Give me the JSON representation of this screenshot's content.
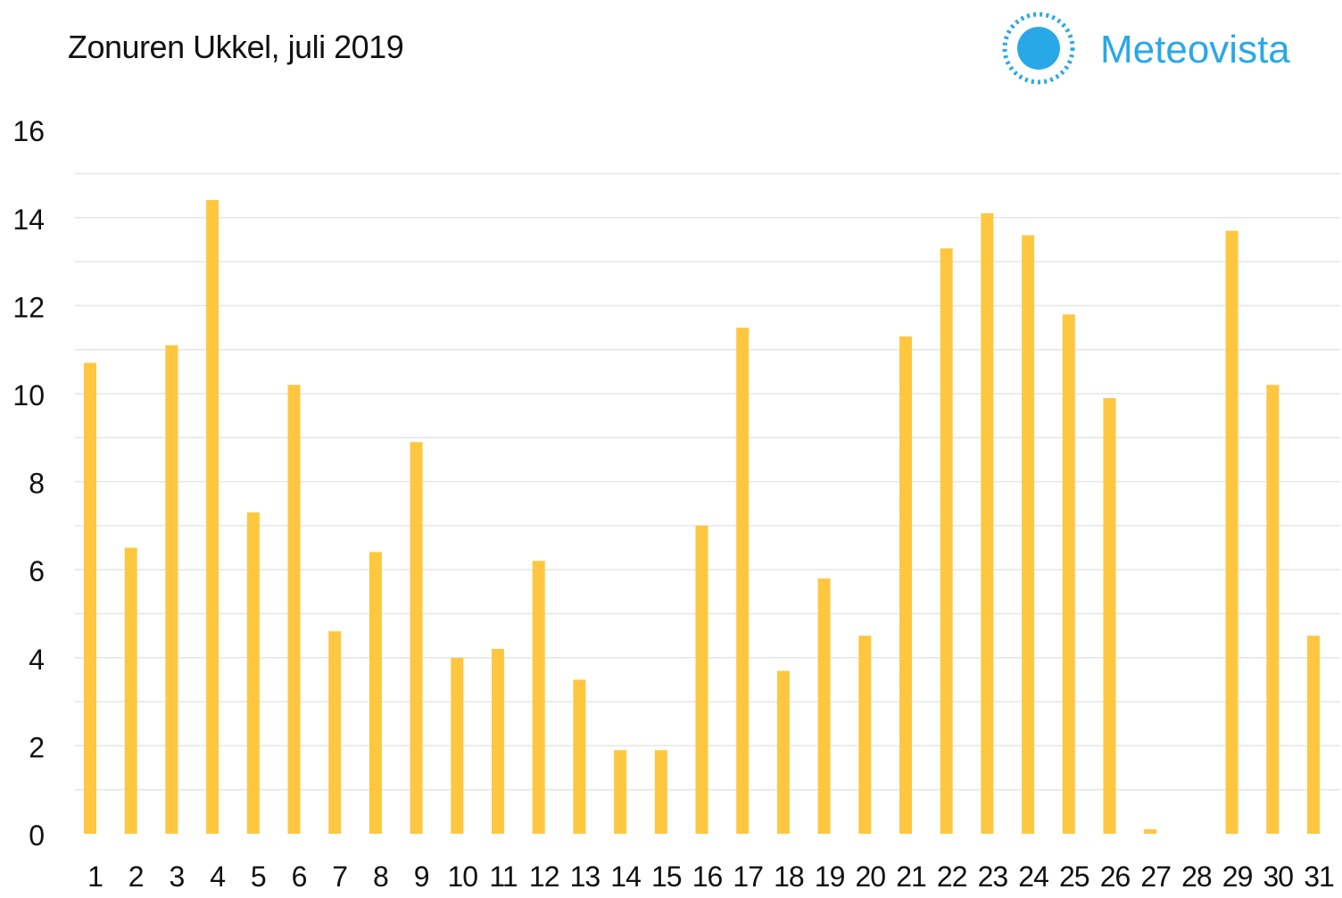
{
  "brand": {
    "name": "Meteovista",
    "color": "#29a8e8"
  },
  "chart_data": {
    "type": "bar",
    "title": "Zonuren Ukkel, juli 2019",
    "xlabel": "",
    "ylabel": "",
    "categories": [
      "1",
      "2",
      "3",
      "4",
      "5",
      "6",
      "7",
      "8",
      "9",
      "10",
      "11",
      "12",
      "13",
      "14",
      "15",
      "16",
      "17",
      "18",
      "19",
      "20",
      "21",
      "22",
      "23",
      "24",
      "25",
      "26",
      "27",
      "28",
      "29",
      "30",
      "31"
    ],
    "values": [
      10.7,
      6.5,
      11.1,
      14.4,
      7.3,
      10.2,
      4.6,
      6.4,
      8.9,
      4.0,
      4.2,
      6.2,
      3.5,
      1.9,
      1.9,
      7.0,
      11.5,
      3.7,
      5.8,
      4.5,
      11.3,
      13.3,
      14.1,
      13.6,
      11.8,
      9.9,
      0.1,
      0.0,
      13.7,
      10.2,
      4.5
    ],
    "ylim": [
      0,
      16
    ],
    "yticks": [
      0,
      2,
      4,
      6,
      8,
      10,
      12,
      14,
      16
    ],
    "grid": true,
    "bar_color": "#fec73f",
    "grid_color": "#e6e6e6"
  }
}
